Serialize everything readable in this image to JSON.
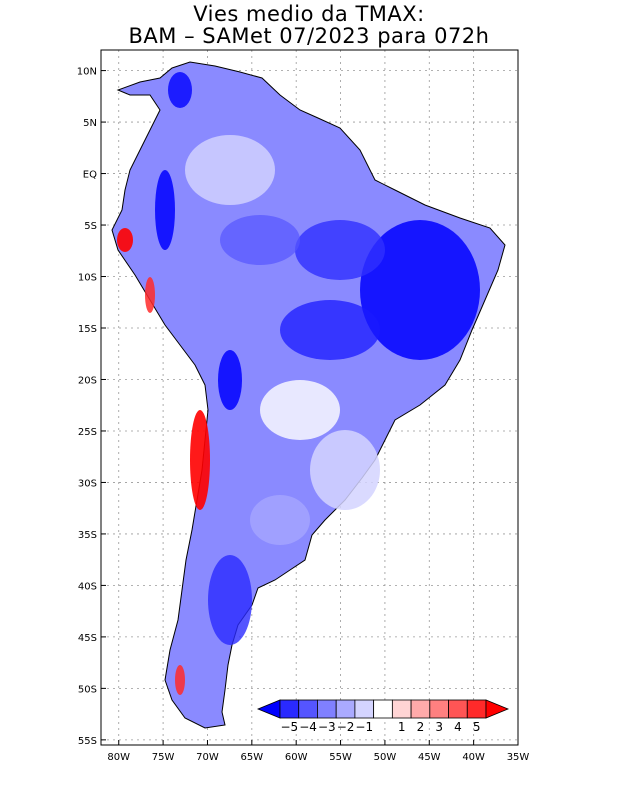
{
  "title_line1": "Vies medio da TMAX:",
  "title_line2": "BAM – SAMet 07/2023  para 072h",
  "lat_labels": [
    "10N",
    "5N",
    "EQ",
    "5S",
    "10S",
    "15S",
    "20S",
    "25S",
    "30S",
    "35S",
    "40S",
    "45S",
    "50S",
    "55S"
  ],
  "lon_labels": [
    "80W",
    "75W",
    "70W",
    "65W",
    "60W",
    "55W",
    "50W",
    "45W",
    "40W",
    "35W"
  ],
  "colorbar": {
    "labels": [
      "−5",
      "−4",
      "−3",
      "−2",
      "−1",
      "1",
      "2",
      "3",
      "4",
      "5"
    ],
    "colors": [
      "#0000ff",
      "#2a2aff",
      "#5555ff",
      "#8080ff",
      "#aaaaff",
      "#d4d4ff",
      "#ffffff",
      "#ffd4d4",
      "#ffaaaa",
      "#ff8080",
      "#ff5555",
      "#ff2a2a",
      "#ff0000"
    ]
  },
  "map_extent": {
    "lon": [
      -82,
      -35
    ],
    "lat": [
      -55.5,
      12
    ]
  }
}
